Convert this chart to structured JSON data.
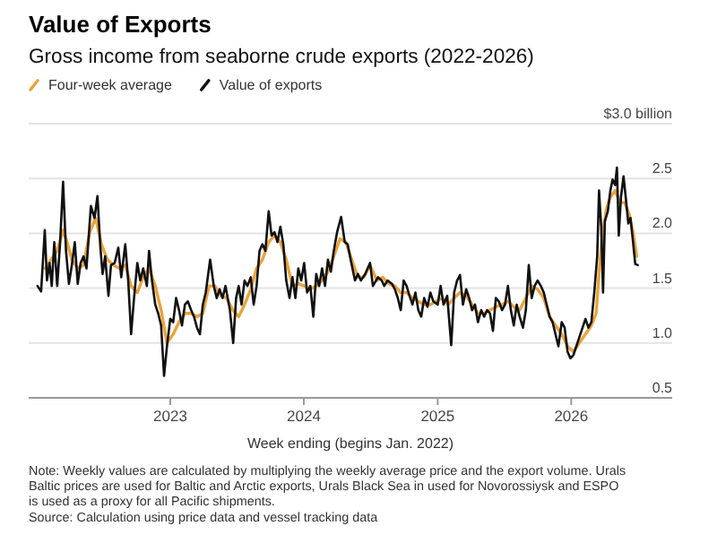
{
  "chart_data": {
    "type": "line",
    "title": "Value of Exports",
    "subtitle": "Gross income from seaborne crude exports (2022-2026)",
    "xlabel": "Week ending (begins Jan. 2022)",
    "legend": "top left",
    "grid": "y",
    "marker": "none",
    "line_style": "solid",
    "xlim": [
      "2021-12-10",
      "2026-10-04"
    ],
    "xticks": [
      {
        "value": "2023-01-01",
        "label": "2023"
      },
      {
        "value": "2024-01-01",
        "label": "2024"
      },
      {
        "value": "2025-01-01",
        "label": "2025"
      },
      {
        "value": "2026-01-01",
        "label": "2026"
      }
    ],
    "ylim": [
      0.5,
      3.0
    ],
    "yticks": [
      {
        "value": 0.5,
        "label": "0.5"
      },
      {
        "value": 1.0,
        "label": "1.0"
      },
      {
        "value": 1.5,
        "label": "1.5"
      },
      {
        "value": 2.0,
        "label": "2.0"
      },
      {
        "value": 2.5,
        "label": "2.5"
      },
      {
        "value": 3.0,
        "label": "$3.0 billion"
      }
    ],
    "series": [
      {
        "name": "Four-week average",
        "color": "#eba33a",
        "x": [
          "2022-01-24",
          "2022-02-09",
          "2022-02-26",
          "2022-03-14",
          "2022-03-25",
          "2022-04-07",
          "2022-04-23",
          "2022-05-09",
          "2022-05-26",
          "2022-06-11",
          "2022-06-27",
          "2022-07-13",
          "2022-07-30",
          "2022-08-15",
          "2022-08-31",
          "2022-09-16",
          "2022-10-03",
          "2022-10-19",
          "2022-11-04",
          "2022-11-21",
          "2022-12-07",
          "2022-12-23",
          "2023-01-09",
          "2023-01-25",
          "2023-02-10",
          "2023-02-27",
          "2023-03-15",
          "2023-03-31",
          "2023-04-17",
          "2023-05-03",
          "2023-05-19",
          "2023-06-04",
          "2023-06-21",
          "2023-07-07",
          "2023-07-23",
          "2023-08-09",
          "2023-08-25",
          "2023-09-10",
          "2023-09-27",
          "2023-10-13",
          "2023-10-29",
          "2023-11-14",
          "2023-12-01",
          "2023-12-17",
          "2024-01-02",
          "2024-01-19",
          "2024-02-04",
          "2024-02-20",
          "2024-03-07",
          "2024-03-23",
          "2024-04-09",
          "2024-04-25",
          "2024-05-11",
          "2024-05-28",
          "2024-06-13",
          "2024-06-30",
          "2024-07-19",
          "2024-08-04",
          "2024-08-20",
          "2024-09-06",
          "2024-09-22",
          "2024-10-08",
          "2024-10-24",
          "2024-11-09",
          "2024-11-25",
          "2024-12-12",
          "2024-12-28",
          "2025-01-14",
          "2025-01-30",
          "2025-02-15",
          "2025-03-03",
          "2025-03-20",
          "2025-04-05",
          "2025-04-21",
          "2025-05-08",
          "2025-05-24",
          "2025-06-09",
          "2025-06-26",
          "2025-07-12",
          "2025-07-28",
          "2025-08-13",
          "2025-08-30",
          "2025-09-15",
          "2025-10-01",
          "2025-10-18",
          "2025-11-03",
          "2025-11-19",
          "2025-12-06",
          "2025-12-22",
          "2026-01-07",
          "2026-01-23",
          "2026-02-09",
          "2026-02-25",
          "2026-03-10",
          "2026-03-18",
          "2026-03-26",
          "2026-04-07",
          "2026-04-18",
          "2026-05-01",
          "2026-05-14",
          "2026-05-27",
          "2026-06-09",
          "2026-06-19",
          "2026-06-29"
        ],
        "values": [
          1.68,
          1.76,
          1.84,
          2.03,
          1.92,
          1.76,
          1.68,
          1.71,
          2.01,
          2.14,
          1.9,
          1.76,
          1.71,
          1.68,
          1.71,
          1.52,
          1.46,
          1.6,
          1.68,
          1.52,
          1.3,
          1.0,
          1.08,
          1.19,
          1.27,
          1.27,
          1.24,
          1.27,
          1.52,
          1.52,
          1.43,
          1.41,
          1.3,
          1.24,
          1.35,
          1.49,
          1.68,
          1.76,
          1.92,
          1.98,
          1.92,
          1.76,
          1.52,
          1.54,
          1.52,
          1.49,
          1.52,
          1.57,
          1.65,
          1.79,
          1.95,
          1.92,
          1.76,
          1.6,
          1.6,
          1.71,
          1.57,
          1.6,
          1.54,
          1.52,
          1.46,
          1.46,
          1.41,
          1.38,
          1.35,
          1.35,
          1.38,
          1.41,
          1.35,
          1.41,
          1.46,
          1.43,
          1.35,
          1.27,
          1.27,
          1.3,
          1.33,
          1.35,
          1.38,
          1.33,
          1.3,
          1.41,
          1.52,
          1.49,
          1.41,
          1.24,
          1.16,
          1.08,
          0.97,
          0.92,
          1.0,
          1.08,
          1.16,
          1.27,
          1.63,
          1.95,
          2.22,
          2.33,
          2.39,
          2.28,
          2.28,
          2.17,
          2.01,
          1.79
        ]
      },
      {
        "name": "Value of exports",
        "color": "#111111",
        "x": [
          "2022-01-03",
          "2022-01-13",
          "2022-01-23",
          "2022-01-29",
          "2022-02-05",
          "2022-02-11",
          "2022-02-18",
          "2022-02-26",
          "2022-03-06",
          "2022-03-14",
          "2022-03-22",
          "2022-03-30",
          "2022-04-07",
          "2022-04-15",
          "2022-04-23",
          "2022-05-01",
          "2022-05-09",
          "2022-05-17",
          "2022-05-29",
          "2022-06-08",
          "2022-06-16",
          "2022-06-24",
          "2022-06-30",
          "2022-07-07",
          "2022-07-16",
          "2022-07-23",
          "2022-08-02",
          "2022-08-12",
          "2022-08-20",
          "2022-08-31",
          "2022-09-08",
          "2022-09-16",
          "2022-09-24",
          "2022-10-03",
          "2022-10-11",
          "2022-10-19",
          "2022-10-29",
          "2022-11-04",
          "2022-11-12",
          "2022-11-21",
          "2022-11-29",
          "2022-12-07",
          "2022-12-15",
          "2022-12-23",
          "2023-01-01",
          "2023-01-09",
          "2023-01-17",
          "2023-01-25",
          "2023-02-02",
          "2023-02-10",
          "2023-02-18",
          "2023-02-27",
          "2023-03-07",
          "2023-03-15",
          "2023-03-23",
          "2023-03-31",
          "2023-04-08",
          "2023-04-20",
          "2023-04-30",
          "2023-05-08",
          "2023-05-16",
          "2023-05-24",
          "2023-06-01",
          "2023-06-13",
          "2023-06-22",
          "2023-06-30",
          "2023-07-07",
          "2023-07-15",
          "2023-07-23",
          "2023-07-31",
          "2023-08-09",
          "2023-08-17",
          "2023-08-25",
          "2023-09-02",
          "2023-09-10",
          "2023-09-18",
          "2023-09-27",
          "2023-10-05",
          "2023-10-13",
          "2023-10-21",
          "2023-10-29",
          "2023-11-06",
          "2023-11-14",
          "2023-11-23",
          "2023-12-01",
          "2023-12-09",
          "2023-12-17",
          "2023-12-25",
          "2024-01-02",
          "2024-01-10",
          "2024-01-19",
          "2024-01-27",
          "2024-02-04",
          "2024-02-12",
          "2024-02-20",
          "2024-02-28",
          "2024-03-07",
          "2024-03-15",
          "2024-03-23",
          "2024-04-01",
          "2024-04-12",
          "2024-04-22",
          "2024-04-30",
          "2024-05-08",
          "2024-05-20",
          "2024-05-28",
          "2024-06-05",
          "2024-06-17",
          "2024-06-30",
          "2024-07-08",
          "2024-07-22",
          "2024-08-01",
          "2024-08-08",
          "2024-08-17",
          "2024-08-29",
          "2024-09-06",
          "2024-09-14",
          "2024-09-22",
          "2024-09-30",
          "2024-10-08",
          "2024-10-16",
          "2024-10-24",
          "2024-11-01",
          "2024-11-09",
          "2024-11-17",
          "2024-11-25",
          "2024-12-04",
          "2024-12-12",
          "2024-12-20",
          "2025-01-01",
          "2025-01-09",
          "2025-01-17",
          "2025-01-27",
          "2025-02-07",
          "2025-02-15",
          "2025-02-23",
          "2025-03-03",
          "2025-03-11",
          "2025-03-20",
          "2025-03-28",
          "2025-04-05",
          "2025-04-13",
          "2025-04-21",
          "2025-04-30",
          "2025-05-08",
          "2025-05-16",
          "2025-05-24",
          "2025-06-01",
          "2025-06-09",
          "2025-06-17",
          "2025-06-26",
          "2025-07-04",
          "2025-07-12",
          "2025-07-20",
          "2025-07-28",
          "2025-08-05",
          "2025-08-13",
          "2025-08-22",
          "2025-08-30",
          "2025-09-07",
          "2025-09-15",
          "2025-09-23",
          "2025-10-01",
          "2025-10-10",
          "2025-10-18",
          "2025-10-26",
          "2025-11-03",
          "2025-11-11",
          "2025-11-19",
          "2025-11-27",
          "2025-12-06",
          "2025-12-14",
          "2025-12-22",
          "2025-12-30",
          "2026-01-07",
          "2026-01-15",
          "2026-01-23",
          "2026-02-01",
          "2026-02-09",
          "2026-02-17",
          "2026-02-25",
          "2026-03-05",
          "2026-03-13",
          "2026-03-18",
          "2026-03-24",
          "2026-03-29",
          "2026-04-03",
          "2026-04-11",
          "2026-04-18",
          "2026-04-24",
          "2026-05-01",
          "2026-05-06",
          "2026-05-11",
          "2026-05-17",
          "2026-05-24",
          "2026-05-30",
          "2026-06-06",
          "2026-06-12",
          "2026-06-19",
          "2026-06-25",
          "2026-07-02"
        ],
        "values": [
          1.52,
          1.47,
          2.03,
          1.57,
          1.73,
          1.52,
          1.92,
          1.52,
          1.92,
          2.47,
          1.84,
          1.54,
          1.71,
          1.92,
          1.54,
          1.73,
          1.79,
          1.68,
          2.25,
          2.14,
          2.34,
          1.87,
          1.63,
          1.79,
          1.43,
          1.71,
          1.73,
          1.87,
          1.6,
          1.9,
          1.57,
          1.08,
          1.41,
          1.73,
          1.57,
          1.68,
          1.52,
          1.84,
          1.57,
          1.35,
          1.27,
          1.16,
          0.7,
          0.97,
          1.22,
          1.19,
          1.41,
          1.3,
          1.16,
          1.35,
          1.38,
          1.3,
          1.24,
          1.14,
          1.08,
          1.35,
          1.46,
          1.76,
          1.52,
          1.41,
          1.49,
          1.41,
          1.52,
          1.3,
          1.0,
          1.41,
          1.52,
          1.35,
          1.57,
          1.52,
          1.6,
          1.35,
          1.52,
          1.84,
          1.9,
          1.84,
          2.2,
          1.98,
          2.01,
          1.92,
          2.06,
          1.9,
          1.57,
          1.41,
          1.6,
          1.41,
          1.68,
          1.57,
          1.73,
          1.46,
          1.52,
          1.24,
          1.63,
          1.52,
          1.68,
          1.52,
          1.76,
          1.65,
          1.84,
          2.01,
          2.15,
          1.92,
          1.9,
          1.76,
          1.57,
          1.63,
          1.57,
          1.63,
          1.73,
          1.52,
          1.6,
          1.57,
          1.52,
          1.57,
          1.54,
          1.49,
          1.41,
          1.3,
          1.57,
          1.52,
          1.43,
          1.35,
          1.46,
          1.3,
          1.24,
          1.41,
          1.33,
          1.46,
          1.38,
          1.35,
          1.52,
          1.35,
          1.43,
          0.98,
          1.46,
          1.57,
          1.62,
          1.35,
          1.49,
          1.41,
          1.3,
          1.35,
          1.19,
          1.3,
          1.24,
          1.3,
          1.27,
          1.11,
          1.41,
          1.38,
          1.3,
          1.35,
          1.52,
          1.3,
          1.16,
          1.35,
          1.24,
          1.14,
          1.3,
          1.71,
          1.41,
          1.52,
          1.57,
          1.52,
          1.46,
          1.35,
          1.24,
          1.19,
          1.08,
          0.97,
          1.19,
          1.14,
          0.92,
          0.86,
          0.89,
          0.97,
          1.05,
          1.14,
          1.22,
          1.14,
          1.19,
          1.46,
          1.79,
          2.39,
          2.06,
          1.46,
          2.11,
          2.2,
          2.39,
          2.49,
          2.44,
          2.6,
          1.98,
          2.33,
          2.52,
          2.33,
          2.09,
          2.14,
          1.92,
          1.72,
          1.71
        ]
      }
    ],
    "annotations": [
      "Note: Weekly values are calculated by multiplying the weekly average price and the export volume. Urals Baltic prices are used for Baltic and Arctic exports, Urals Black Sea in used for Novorossiysk and ESPO is used as a proxy for all Pacific shipments.",
      "Source: Calculation using price data and vessel tracking data"
    ]
  }
}
